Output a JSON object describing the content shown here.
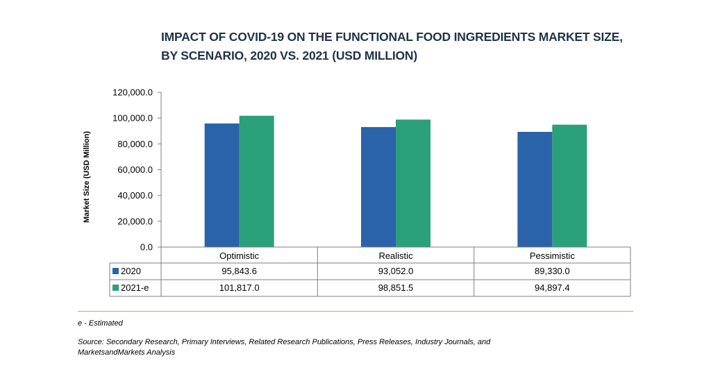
{
  "title_line1": "IMPACT OF COVID-19 ON THE FUNCTIONAL FOOD INGREDIENTS MARKET SIZE,",
  "title_line2": "BY SCENARIO, 2020 VS. 2021 (USD MILLION)",
  "footnote": "e - Estimated",
  "source_line1": "Source: Secondary Research, Primary Interviews, Related Research Publications, Press Releases, Industry Journals, and",
  "source_line2": "MarketsandMarkets Analysis",
  "colors": {
    "s2020": "#2b63aa",
    "s2021": "#2aa07b",
    "title": "#1f3349",
    "separator": "#c9a55a"
  },
  "chart_data": {
    "type": "bar",
    "title": "IMPACT OF COVID-19 ON THE FUNCTIONAL FOOD INGREDIENTS MARKET SIZE, BY SCENARIO, 2020 VS. 2021 (USD MILLION)",
    "ylabel": "Market Size (USD Million)",
    "xlabel": "",
    "ylim": [
      0,
      120000
    ],
    "yticks": [
      "0.0",
      "20,000.0",
      "40,000.0",
      "60,000.0",
      "80,000.0",
      "100,000.0",
      "120,000.0"
    ],
    "ytick_values": [
      0,
      20000,
      40000,
      60000,
      80000,
      100000,
      120000
    ],
    "categories": [
      "Optimistic",
      "Realistic",
      "Pessimistic"
    ],
    "series": [
      {
        "name": "2020",
        "values": [
          95843.6,
          93052.0,
          89330.0
        ],
        "labels": [
          "95,843.6",
          "93,052.0",
          "89,330.0"
        ]
      },
      {
        "name": "2021-e",
        "values": [
          101817.0,
          98851.5,
          94897.4
        ],
        "labels": [
          "101,817.0",
          "98,851.5",
          "94,897.4"
        ]
      }
    ],
    "legend": "data-table"
  }
}
